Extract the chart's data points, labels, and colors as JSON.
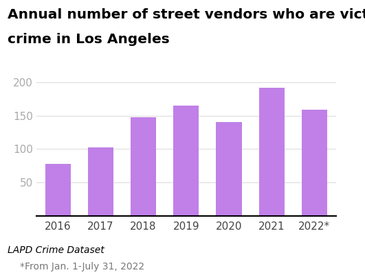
{
  "title_line1": "Annual number of street vendors who are victims of",
  "title_line2": "crime in Los Angeles",
  "categories": [
    "2016",
    "2017",
    "2018",
    "2019",
    "2020",
    "2021",
    "2022*"
  ],
  "values": [
    78,
    102,
    147,
    165,
    140,
    192,
    159
  ],
  "bar_color": "#c080e8",
  "ylim": [
    0,
    215
  ],
  "yticks": [
    50,
    100,
    150,
    200
  ],
  "ytick_label_200": "200",
  "footnote_source": "LAPD Crime Dataset",
  "footnote_note": "*From Jan. 1-July 31, 2022",
  "title_fontsize": 14.5,
  "tick_fontsize": 11,
  "footnote_fontsize": 10,
  "tick_color": "#aaaaaa",
  "grid_color": "#dddddd"
}
